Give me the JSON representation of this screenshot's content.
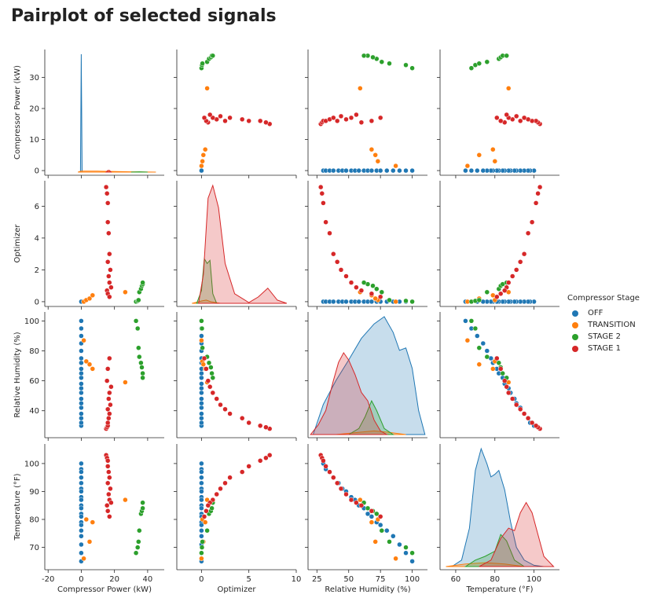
{
  "title": "Pairplot of selected signals",
  "legend": {
    "title": "Compressor Stage",
    "items": [
      {
        "label": "OFF",
        "color": "#1f77b4"
      },
      {
        "label": "TRANSITION",
        "color": "#ff7f0e"
      },
      {
        "label": "STAGE 2",
        "color": "#2ca02c"
      },
      {
        "label": "STAGE 1",
        "color": "#d62728"
      }
    ]
  },
  "chart_data": {
    "type": "pairplot",
    "hue": "Compressor Stage",
    "variables": [
      {
        "key": "power",
        "label": "Compressor Power (kW)",
        "lim": [
          -22,
          50
        ],
        "ticks": [
          -20,
          0,
          20,
          40
        ],
        "ylim": [
          -1.5,
          39
        ],
        "yticks": [
          0,
          10,
          20,
          30
        ]
      },
      {
        "key": "opt",
        "label": "Optimizer",
        "lim": [
          -2.6,
          10
        ],
        "ticks": [
          0,
          5,
          10
        ],
        "ylim": [
          -0.3,
          7.6
        ],
        "yticks": [
          0,
          2,
          4,
          6
        ]
      },
      {
        "key": "rh",
        "label": "Relative Humidity (%)",
        "lim": [
          18,
          112
        ],
        "ticks": [
          25,
          50,
          75,
          100
        ],
        "ylim": [
          22,
          106
        ],
        "yticks": [
          40,
          60,
          80,
          100
        ]
      },
      {
        "key": "temp",
        "label": "Temperature (°F)",
        "lim": [
          52,
          113
        ],
        "ticks": [
          60,
          80,
          100
        ],
        "ylim": [
          62,
          107
        ],
        "yticks": [
          70,
          80,
          90,
          100
        ]
      }
    ],
    "series": [
      {
        "name": "OFF",
        "color": "#1f77b4",
        "columns": {
          "power": [
            0,
            0,
            0,
            0,
            0,
            0,
            0,
            0,
            0,
            0,
            0,
            0,
            0,
            0,
            0,
            0,
            0,
            0,
            0,
            0
          ],
          "opt": [
            0,
            0,
            0,
            0,
            0,
            0,
            0,
            0,
            0,
            0,
            0,
            0,
            0,
            0,
            0,
            0,
            0,
            0,
            0,
            0
          ],
          "rh": [
            30,
            32,
            35,
            38,
            42,
            45,
            48,
            52,
            55,
            58,
            62,
            65,
            68,
            72,
            75,
            80,
            85,
            90,
            95,
            100
          ],
          "temp": [
            100,
            98,
            97,
            95,
            93,
            91,
            90,
            88,
            87,
            85,
            84,
            82,
            81,
            79,
            78,
            76,
            74,
            71,
            68,
            65
          ]
        },
        "kde": {
          "power": {
            "x": [
              -0.5,
              0,
              0.5
            ],
            "y": [
              0,
              36,
              0
            ]
          },
          "opt": {
            "x": [
              -0.3,
              0,
              0.3
            ],
            "y": [
              0,
              0,
              0
            ]
          },
          "rh": {
            "x": [
              22,
              30,
              40,
              50,
              60,
              70,
              78,
              85,
              90,
              95,
              100,
              105,
              110
            ],
            "y": [
              0,
              0.25,
              0.45,
              0.62,
              0.8,
              0.92,
              0.98,
              0.85,
              0.7,
              0.72,
              0.55,
              0.2,
              0
            ]
          },
          "temp": {
            "x": [
              58,
              63,
              67,
              70,
              73,
              76,
              78,
              80,
              82,
              85,
              88,
              91,
              95,
              100,
              105
            ],
            "y": [
              0,
              0.05,
              0.3,
              0.75,
              0.92,
              0.8,
              0.7,
              0.72,
              0.75,
              0.6,
              0.35,
              0.15,
              0.05,
              0.01,
              0
            ]
          }
        }
      },
      {
        "name": "TRANSITION",
        "color": "#ff7f0e",
        "columns": {
          "power": [
            1.5,
            3,
            5,
            6.8,
            26.5
          ],
          "opt": [
            0,
            0.1,
            0.2,
            0.4,
            0.6
          ],
          "rh": [
            87,
            73,
            71,
            68,
            59
          ],
          "temp": [
            66,
            80,
            72,
            79,
            87
          ]
        },
        "kde": {
          "power": {
            "x": [
              -2,
              0,
              10,
              30,
              45
            ],
            "y": [
              0,
              0.3,
              0.3,
              0.1,
              0
            ]
          },
          "opt": {
            "x": [
              -1,
              0,
              0.5,
              1,
              2
            ],
            "y": [
              0,
              0.15,
              0.2,
              0.1,
              0
            ]
          },
          "rh": {
            "x": [
              40,
              60,
              70,
              80,
              95
            ],
            "y": [
              0,
              0.02,
              0.03,
              0.02,
              0
            ]
          },
          "temp": {
            "x": [
              55,
              65,
              75,
              85,
              95
            ],
            "y": [
              0,
              0.02,
              0.03,
              0.02,
              0
            ]
          }
        }
      },
      {
        "name": "STAGE 2",
        "color": "#2ca02c",
        "columns": {
          "power": [
            33,
            34,
            34.5,
            35,
            36,
            36.5,
            37,
            37
          ],
          "opt": [
            0,
            0.05,
            0.1,
            0.6,
            0.8,
            1.0,
            1.1,
            1.2
          ],
          "rh": [
            100,
            95,
            82,
            76,
            72,
            69,
            65,
            62
          ],
          "temp": [
            68,
            70,
            72,
            76,
            82,
            83,
            84,
            86
          ],
          "opt_kde": []
        },
        "kde": {
          "power": {
            "x": [
              30,
              35,
              40
            ],
            "y": [
              0,
              0.1,
              0
            ]
          },
          "opt": {
            "x": [
              -0.5,
              0,
              0.3,
              0.6,
              0.9,
              1.2,
              1.6
            ],
            "y": [
              0,
              0.8,
              2.8,
              2.5,
              2.7,
              0.6,
              0
            ]
          },
          "rh": {
            "x": [
              50,
              58,
              63,
              68,
              72,
              78,
              85
            ],
            "y": [
              0,
              0.05,
              0.15,
              0.28,
              0.2,
              0.05,
              0
            ]
          },
          "temp": {
            "x": [
              65,
              70,
              75,
              80,
              83,
              86,
              90,
              95
            ],
            "y": [
              0,
              0.05,
              0.08,
              0.12,
              0.25,
              0.2,
              0.05,
              0
            ]
          }
        }
      },
      {
        "name": "STAGE 1",
        "color": "#d62728",
        "columns": {
          "power": [
            15,
            15.5,
            16,
            16,
            16.5,
            17,
            16,
            17.5,
            16.5,
            17,
            18,
            15.5,
            16,
            17
          ],
          "opt": [
            7.2,
            6.8,
            6.2,
            5.0,
            4.3,
            3.0,
            2.5,
            2.0,
            1.6,
            1.2,
            0.9,
            0.7,
            0.5,
            0.3
          ],
          "rh": [
            28,
            29,
            30,
            32,
            35,
            38,
            41,
            44,
            48,
            52,
            56,
            60,
            68,
            75
          ],
          "temp": [
            103,
            102,
            101,
            99,
            97,
            95,
            93,
            91,
            89,
            87,
            86,
            85,
            83,
            81
          ]
        },
        "kde": {
          "power": {
            "x": [
              15,
              16,
              17,
              18
            ],
            "y": [
              0,
              0.5,
              0.5,
              0
            ]
          },
          "opt": {
            "x": [
              -0.3,
              0.2,
              0.7,
              1.2,
              1.8,
              2.5,
              3.5,
              5,
              6,
              7,
              8,
              9
            ],
            "y": [
              0,
              1.8,
              6.6,
              7.4,
              6,
              2.5,
              0.6,
              0.05,
              0.4,
              0.95,
              0.2,
              0
            ]
          },
          "rh": {
            "x": [
              20,
              26,
              32,
              38,
              42,
              46,
              50,
              55,
              60,
              65,
              70,
              75,
              80
            ],
            "y": [
              0,
              0.08,
              0.2,
              0.45,
              0.6,
              0.68,
              0.62,
              0.5,
              0.35,
              0.28,
              0.12,
              0.03,
              0
            ]
          },
          "temp": {
            "x": [
              72,
              78,
              83,
              87,
              90,
              93,
              96,
              99,
              102,
              105,
              110
            ],
            "y": [
              0,
              0.05,
              0.22,
              0.3,
              0.28,
              0.42,
              0.5,
              0.42,
              0.25,
              0.08,
              0
            ]
          }
        }
      }
    ]
  }
}
